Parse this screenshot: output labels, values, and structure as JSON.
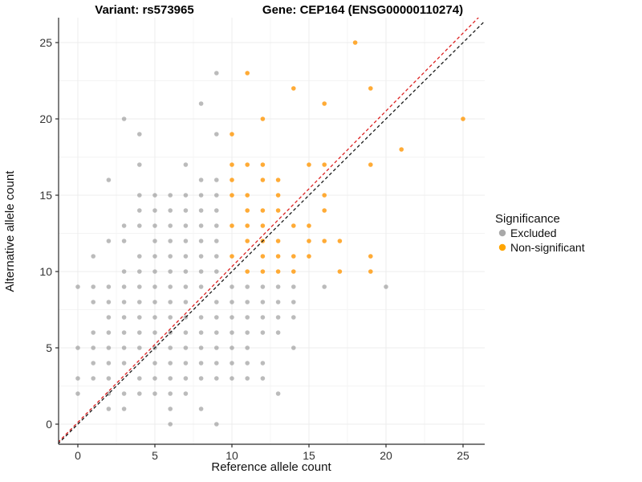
{
  "header": {
    "variant_title": "Variant: rs573965",
    "gene_title": "Gene: CEP164 (ENSG00000110274)"
  },
  "colors": {
    "excluded": "#A9A9A9",
    "non_significant": "#FFA500",
    "excluded_point": "rgba(145,145,145,0.62)",
    "non_significant_point": "rgba(255,153,10,0.82)",
    "identity_line": "#1A1A1A",
    "fit_line": "#DD2020",
    "grid_major": "#ECECEC",
    "grid_minor": "#F4F4F4",
    "axis": "#2B2B2B"
  },
  "chart_data": {
    "type": "scatter",
    "title_left": "Variant: rs573965",
    "title_right": "Gene: CEP164 (ENSG00000110274)",
    "xlabel": "Reference allele count",
    "ylabel": "Alternative allele count",
    "xlim": [
      -1.3,
      26.4
    ],
    "ylim": [
      -1.3,
      26.6
    ],
    "xticks": [
      0,
      5,
      10,
      15,
      20,
      25
    ],
    "yticks": [
      0,
      5,
      10,
      15,
      20,
      25
    ],
    "grid": true,
    "legend": {
      "title": "Significance",
      "position": "right",
      "entries": [
        {
          "label": "Excluded",
          "color": "#A9A9A9"
        },
        {
          "label": "Non-significant",
          "color": "#FFA500"
        }
      ]
    },
    "reference_lines": [
      {
        "name": "identity",
        "style": "dashed",
        "color": "#1A1A1A",
        "slope": 1.0,
        "intercept": 0.0
      },
      {
        "name": "fit",
        "style": "dashed",
        "color": "#DD2020",
        "slope": 1.02,
        "intercept": 0.12
      }
    ],
    "series": [
      {
        "name": "Excluded",
        "color": "#A9A9A9",
        "points": [
          [
            6,
            0
          ],
          [
            9,
            0
          ],
          [
            2,
            1
          ],
          [
            3,
            1
          ],
          [
            6,
            1
          ],
          [
            8,
            1
          ],
          [
            0,
            2
          ],
          [
            2,
            2
          ],
          [
            3,
            2
          ],
          [
            4,
            2
          ],
          [
            5,
            2
          ],
          [
            6,
            2
          ],
          [
            7,
            2
          ],
          [
            13,
            2
          ],
          [
            0,
            3
          ],
          [
            1,
            3
          ],
          [
            2,
            3
          ],
          [
            4,
            3
          ],
          [
            5,
            3
          ],
          [
            6,
            3
          ],
          [
            7,
            3
          ],
          [
            8,
            3
          ],
          [
            9,
            3
          ],
          [
            10,
            3
          ],
          [
            11,
            3
          ],
          [
            12,
            3
          ],
          [
            1,
            4
          ],
          [
            2,
            4
          ],
          [
            3,
            4
          ],
          [
            5,
            4
          ],
          [
            6,
            4
          ],
          [
            7,
            4
          ],
          [
            8,
            4
          ],
          [
            9,
            4
          ],
          [
            10,
            4
          ],
          [
            11,
            4
          ],
          [
            12,
            4
          ],
          [
            0,
            5
          ],
          [
            1,
            5
          ],
          [
            2,
            5
          ],
          [
            3,
            5
          ],
          [
            4,
            5
          ],
          [
            5,
            5
          ],
          [
            6,
            5
          ],
          [
            7,
            5
          ],
          [
            8,
            5
          ],
          [
            9,
            5
          ],
          [
            10,
            5
          ],
          [
            11,
            5
          ],
          [
            14,
            5
          ],
          [
            1,
            6
          ],
          [
            2,
            6
          ],
          [
            3,
            6
          ],
          [
            4,
            6
          ],
          [
            5,
            6
          ],
          [
            6,
            6
          ],
          [
            7,
            6
          ],
          [
            8,
            6
          ],
          [
            9,
            6
          ],
          [
            10,
            6
          ],
          [
            11,
            6
          ],
          [
            12,
            6
          ],
          [
            13,
            6
          ],
          [
            2,
            7
          ],
          [
            3,
            7
          ],
          [
            4,
            7
          ],
          [
            5,
            7
          ],
          [
            6,
            7
          ],
          [
            7,
            7
          ],
          [
            8,
            7
          ],
          [
            9,
            7
          ],
          [
            10,
            7
          ],
          [
            11,
            7
          ],
          [
            12,
            7
          ],
          [
            13,
            7
          ],
          [
            14,
            7
          ],
          [
            1,
            8
          ],
          [
            2,
            8
          ],
          [
            3,
            8
          ],
          [
            4,
            8
          ],
          [
            5,
            8
          ],
          [
            6,
            8
          ],
          [
            7,
            8
          ],
          [
            9,
            8
          ],
          [
            10,
            8
          ],
          [
            11,
            8
          ],
          [
            12,
            8
          ],
          [
            13,
            8
          ],
          [
            14,
            8
          ],
          [
            0,
            9
          ],
          [
            1,
            9
          ],
          [
            2,
            9
          ],
          [
            3,
            9
          ],
          [
            4,
            9
          ],
          [
            5,
            9
          ],
          [
            6,
            9
          ],
          [
            7,
            9
          ],
          [
            8,
            9
          ],
          [
            10,
            9
          ],
          [
            11,
            9
          ],
          [
            12,
            9
          ],
          [
            13,
            9
          ],
          [
            14,
            9
          ],
          [
            16,
            9
          ],
          [
            20,
            9
          ],
          [
            3,
            10
          ],
          [
            4,
            10
          ],
          [
            5,
            10
          ],
          [
            6,
            10
          ],
          [
            7,
            10
          ],
          [
            8,
            10
          ],
          [
            9,
            10
          ],
          [
            1,
            11
          ],
          [
            4,
            11
          ],
          [
            5,
            11
          ],
          [
            6,
            11
          ],
          [
            7,
            11
          ],
          [
            8,
            11
          ],
          [
            9,
            11
          ],
          [
            2,
            12
          ],
          [
            3,
            12
          ],
          [
            5,
            12
          ],
          [
            6,
            12
          ],
          [
            7,
            12
          ],
          [
            8,
            12
          ],
          [
            9,
            12
          ],
          [
            3,
            13
          ],
          [
            4,
            13
          ],
          [
            5,
            13
          ],
          [
            6,
            13
          ],
          [
            7,
            13
          ],
          [
            8,
            13
          ],
          [
            9,
            13
          ],
          [
            4,
            14
          ],
          [
            5,
            14
          ],
          [
            6,
            14
          ],
          [
            7,
            14
          ],
          [
            8,
            14
          ],
          [
            9,
            14
          ],
          [
            4,
            15
          ],
          [
            5,
            15
          ],
          [
            6,
            15
          ],
          [
            7,
            15
          ],
          [
            8,
            15
          ],
          [
            9,
            15
          ],
          [
            2,
            16
          ],
          [
            8,
            16
          ],
          [
            9,
            16
          ],
          [
            4,
            17
          ],
          [
            7,
            17
          ],
          [
            4,
            19
          ],
          [
            9,
            19
          ],
          [
            3,
            20
          ],
          [
            8,
            21
          ],
          [
            9,
            23
          ]
        ]
      },
      {
        "name": "Non-significant",
        "color": "#FFA500",
        "points": [
          [
            11,
            10
          ],
          [
            12,
            10
          ],
          [
            13,
            10
          ],
          [
            14,
            10
          ],
          [
            17,
            10
          ],
          [
            19,
            10
          ],
          [
            10,
            11
          ],
          [
            12,
            11
          ],
          [
            13,
            11
          ],
          [
            14,
            11
          ],
          [
            15,
            11
          ],
          [
            19,
            11
          ],
          [
            11,
            12
          ],
          [
            12,
            12
          ],
          [
            13,
            12
          ],
          [
            15,
            12
          ],
          [
            16,
            12
          ],
          [
            17,
            12
          ],
          [
            10,
            13
          ],
          [
            11,
            13
          ],
          [
            12,
            13
          ],
          [
            14,
            13
          ],
          [
            15,
            13
          ],
          [
            11,
            14
          ],
          [
            12,
            14
          ],
          [
            13,
            14
          ],
          [
            16,
            14
          ],
          [
            10,
            15
          ],
          [
            11,
            15
          ],
          [
            13,
            15
          ],
          [
            16,
            15
          ],
          [
            10,
            16
          ],
          [
            12,
            16
          ],
          [
            13,
            16
          ],
          [
            10,
            17
          ],
          [
            11,
            17
          ],
          [
            12,
            17
          ],
          [
            15,
            17
          ],
          [
            16,
            17
          ],
          [
            19,
            17
          ],
          [
            21,
            18
          ],
          [
            10,
            19
          ],
          [
            12,
            20
          ],
          [
            25,
            20
          ],
          [
            16,
            21
          ],
          [
            14,
            22
          ],
          [
            19,
            22
          ],
          [
            11,
            23
          ],
          [
            18,
            25
          ]
        ]
      }
    ]
  }
}
